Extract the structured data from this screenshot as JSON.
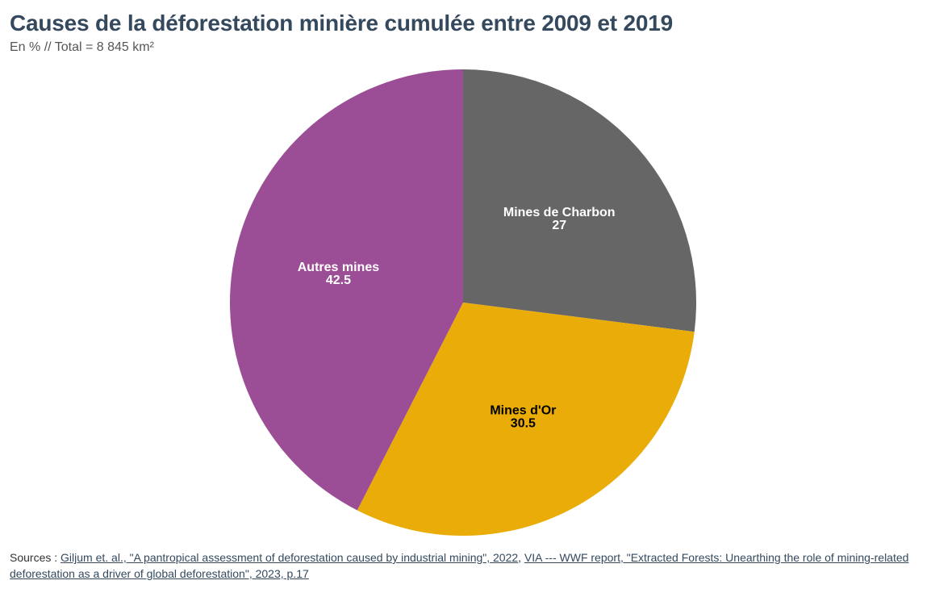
{
  "title": "Causes de la déforestation minière cumulée entre 2009 et 2019",
  "subtitle": "En % // Total = 8 845 km²",
  "chart_data": {
    "type": "pie",
    "start_angle_deg": 0,
    "direction": "clockwise",
    "slices": [
      {
        "label": "Mines de Charbon",
        "value": 27,
        "display_value": "27",
        "color": "#666666",
        "label_color": "#ffffff"
      },
      {
        "label": "Mines d'Or",
        "value": 30.5,
        "display_value": "30.5",
        "color": "#e9ac08",
        "label_color": "#000000"
      },
      {
        "label": "Autres mines",
        "value": 42.5,
        "display_value": "42.5",
        "color": "#9b4e95",
        "label_color": "#ffffff"
      }
    ]
  },
  "sources": {
    "prefix": "Sources : ",
    "link1": "Giljum et. al., \"A pantropical assessment of deforestation caused by industrial mining\", 2022",
    "separator": ", ",
    "link2": "VIA --- WWF report, \"Extracted Forests: Unearthing the role of mining-related deforestation as a driver of global deforestation\", 2023, p.17"
  }
}
